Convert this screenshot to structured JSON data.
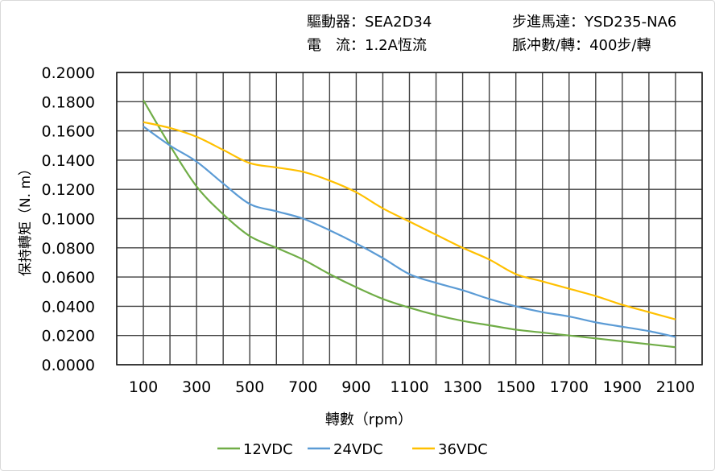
{
  "header": {
    "driver": "驅動器：SEA2D34",
    "current": "電　流：1.2A恆流",
    "motor": "步進馬達：YSD235-NA6",
    "pulses": "脈冲數/轉：400步/轉"
  },
  "chart_data": {
    "type": "line",
    "xlabel": "轉數（rpm）",
    "ylabel": "保持轉矩（N. m）",
    "xlim": [
      0,
      2200
    ],
    "ylim": [
      0,
      0.2
    ],
    "xticks": [
      "100",
      "300",
      "500",
      "700",
      "900",
      "1100",
      "1300",
      "1500",
      "1700",
      "1900",
      "2100"
    ],
    "yticks": [
      "0.0000",
      "0.0200",
      "0.0400",
      "0.0600",
      "0.0800",
      "0.1000",
      "0.1200",
      "0.1400",
      "0.1600",
      "0.1800",
      "0.2000"
    ],
    "grid": true,
    "legend_position": "bottom",
    "x": [
      100,
      200,
      300,
      400,
      500,
      600,
      700,
      800,
      900,
      1000,
      1100,
      1200,
      1300,
      1400,
      1500,
      1600,
      1700,
      1800,
      1900,
      2000,
      2100
    ],
    "series": [
      {
        "name": "12VDC",
        "color": "#70ad47",
        "values": [
          0.181,
          0.15,
          0.122,
          0.103,
          0.088,
          0.08,
          0.072,
          0.062,
          0.053,
          0.045,
          0.039,
          0.034,
          0.03,
          0.027,
          0.024,
          0.022,
          0.02,
          0.018,
          0.016,
          0.014,
          0.012
        ]
      },
      {
        "name": "24VDC",
        "color": "#5b9bd5",
        "values": [
          0.163,
          0.15,
          0.139,
          0.124,
          0.11,
          0.105,
          0.1,
          0.092,
          0.083,
          0.073,
          0.062,
          0.056,
          0.051,
          0.045,
          0.04,
          0.036,
          0.033,
          0.029,
          0.026,
          0.023,
          0.019
        ]
      },
      {
        "name": "36VDC",
        "color": "#ffc000",
        "values": [
          0.166,
          0.162,
          0.156,
          0.147,
          0.138,
          0.135,
          0.132,
          0.126,
          0.118,
          0.107,
          0.098,
          0.089,
          0.08,
          0.072,
          0.062,
          0.057,
          0.052,
          0.047,
          0.041,
          0.036,
          0.031
        ]
      }
    ]
  }
}
